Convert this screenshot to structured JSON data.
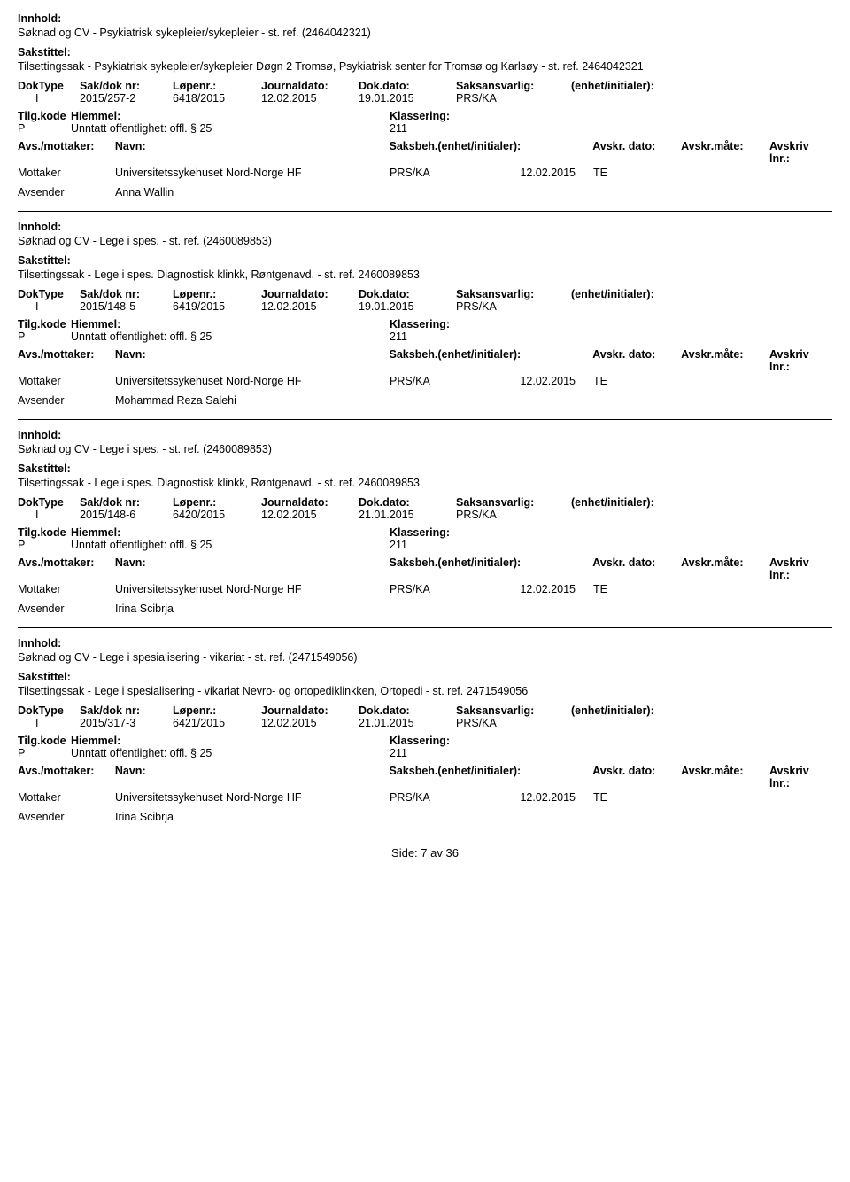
{
  "labels": {
    "innhold": "Innhold:",
    "sakstittel": "Sakstittel:",
    "doktype": "DokType",
    "sakdok": "Sak/dok nr:",
    "lopenr": "Løpenr.:",
    "journaldato": "Journaldato:",
    "dokdato": "Dok.dato:",
    "saksansvarlig": "Saksansvarlig:",
    "enhet_initialer": "(enhet/initialer):",
    "tilgkode": "Tilg.kode",
    "hjemmel": "Hiemmel:",
    "klassering": "Klassering:",
    "avs_mottaker": "Avs./mottaker:",
    "navn": "Navn:",
    "saksbeh": "Saksbeh.",
    "saksbeh_enhet": "(enhet/initialer):",
    "avskr_dato": "Avskr. dato:",
    "avskr_mate": "Avskr.måte:",
    "avskriv_lnr": "Avskriv lnr.:",
    "mottaker": "Mottaker",
    "avsender": "Avsender",
    "side": "Side: ",
    "side_sep": " av ",
    "page_num": "7",
    "page_total": "36"
  },
  "entries": [
    {
      "innhold": "Søknad og CV - Psykiatrisk sykepleier/sykepleier - st. ref. (2464042321)",
      "sakstittel": "Tilsettingssak - Psykiatrisk sykepleier/sykepleier Døgn 2 Tromsø, Psykiatrisk senter for Tromsø og Karlsøy - st. ref. 2464042321",
      "doktype": "I",
      "sakdok": "2015/257-2",
      "lopenr": "6418/2015",
      "journaldato": "12.02.2015",
      "dokdato": "19.01.2015",
      "saksansvarlig": "PRS/KA",
      "tilgkode": "P",
      "hjemmel": "Unntatt offentlighet: offl. § 25",
      "klassering": "211",
      "mottaker_navn": "Universitetssykehuset Nord-Norge HF",
      "mottaker_saksbeh": "PRS/KA",
      "mottaker_avskrdato": "12.02.2015",
      "mottaker_avskrmate": "TE",
      "avsender_navn": "Anna Wallin"
    },
    {
      "innhold": "Søknad og CV - Lege i spes. - st. ref. (2460089853)",
      "sakstittel": "Tilsettingssak - Lege i spes. Diagnostisk klinkk, Røntgenavd. - st. ref. 2460089853",
      "doktype": "I",
      "sakdok": "2015/148-5",
      "lopenr": "6419/2015",
      "journaldato": "12.02.2015",
      "dokdato": "19.01.2015",
      "saksansvarlig": "PRS/KA",
      "tilgkode": "P",
      "hjemmel": "Unntatt offentlighet: offl. § 25",
      "klassering": "211",
      "mottaker_navn": "Universitetssykehuset Nord-Norge HF",
      "mottaker_saksbeh": "PRS/KA",
      "mottaker_avskrdato": "12.02.2015",
      "mottaker_avskrmate": "TE",
      "avsender_navn": "Mohammad Reza Salehi"
    },
    {
      "innhold": "Søknad og CV - Lege i spes. - st. ref. (2460089853)",
      "sakstittel": "Tilsettingssak - Lege i spes. Diagnostisk klinkk, Røntgenavd. - st. ref. 2460089853",
      "doktype": "I",
      "sakdok": "2015/148-6",
      "lopenr": "6420/2015",
      "journaldato": "12.02.2015",
      "dokdato": "21.01.2015",
      "saksansvarlig": "PRS/KA",
      "tilgkode": "P",
      "hjemmel": "Unntatt offentlighet: offl. § 25",
      "klassering": "211",
      "mottaker_navn": "Universitetssykehuset Nord-Norge HF",
      "mottaker_saksbeh": "PRS/KA",
      "mottaker_avskrdato": "12.02.2015",
      "mottaker_avskrmate": "TE",
      "avsender_navn": "Irina Scibrja"
    },
    {
      "innhold": "Søknad og CV - Lege i spesialisering - vikariat - st. ref. (2471549056)",
      "sakstittel": "Tilsettingssak - Lege i spesialisering - vikariat Nevro- og ortopediklinkken, Ortopedi - st. ref. 2471549056",
      "doktype": "I",
      "sakdok": "2015/317-3",
      "lopenr": "6421/2015",
      "journaldato": "12.02.2015",
      "dokdato": "21.01.2015",
      "saksansvarlig": "PRS/KA",
      "tilgkode": "P",
      "hjemmel": "Unntatt offentlighet: offl. § 25",
      "klassering": "211",
      "mottaker_navn": "Universitetssykehuset Nord-Norge HF",
      "mottaker_saksbeh": "PRS/KA",
      "mottaker_avskrdato": "12.02.2015",
      "mottaker_avskrmate": "TE",
      "avsender_navn": "Irina Scibrja"
    }
  ]
}
